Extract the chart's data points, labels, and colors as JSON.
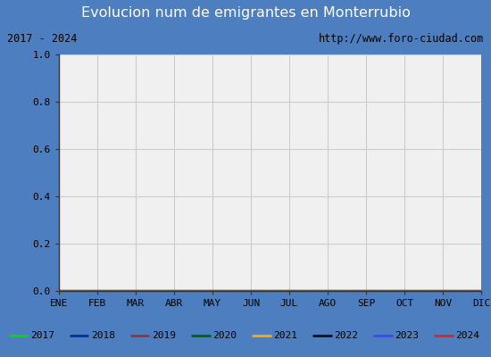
{
  "title": "Evolucion num de emigrantes en Monterrubio",
  "title_bg_color": "#4d7ebf",
  "title_text_color": "#ffffff",
  "subtitle_left": "2017 - 2024",
  "subtitle_right": "http://www.foro-ciudad.com",
  "subtitle_bg_color": "#f0f0f0",
  "subtitle_border_color": "#555555",
  "plot_bg_color": "#f0f0f0",
  "ylim": [
    0.0,
    1.0
  ],
  "yticks": [
    0.0,
    0.2,
    0.4,
    0.6,
    0.8,
    1.0
  ],
  "xtick_labels": [
    "ENE",
    "FEB",
    "MAR",
    "ABR",
    "MAY",
    "JUN",
    "JUL",
    "AGO",
    "SEP",
    "OCT",
    "NOV",
    "DIC"
  ],
  "grid_color": "#cccccc",
  "legend_entries": [
    {
      "label": "2017",
      "color": "#00dd00"
    },
    {
      "label": "2018",
      "color": "#003399"
    },
    {
      "label": "2019",
      "color": "#993333"
    },
    {
      "label": "2020",
      "color": "#006600"
    },
    {
      "label": "2021",
      "color": "#ffaa00"
    },
    {
      "label": "2022",
      "color": "#111111"
    },
    {
      "label": "2023",
      "color": "#4444ff"
    },
    {
      "label": "2024",
      "color": "#dd2222"
    }
  ],
  "legend_bg_color": "#ffffff",
  "legend_border_color": "#555555",
  "outer_border_color": "#4d7ebf",
  "figsize": [
    5.5,
    4.0
  ],
  "dpi": 100
}
